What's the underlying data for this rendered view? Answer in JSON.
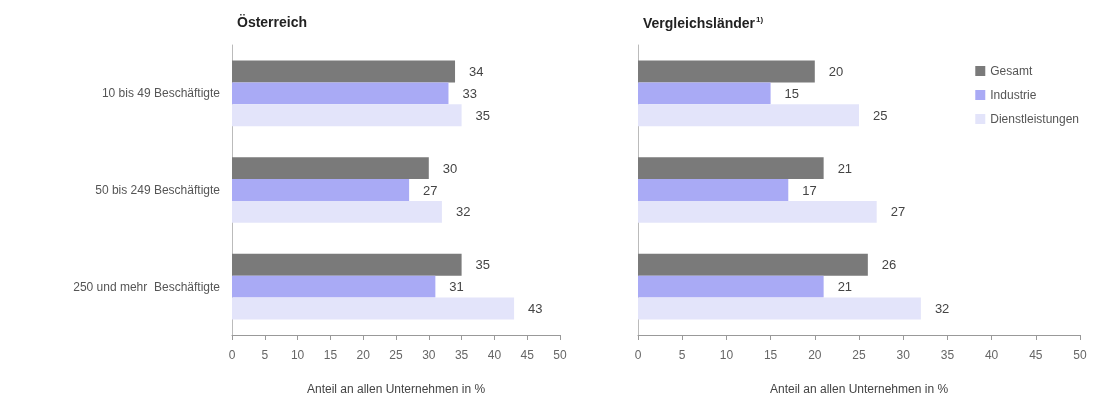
{
  "chart_data": [
    {
      "type": "bar",
      "orientation": "horizontal",
      "title": "Österreich",
      "xlabel": "Anteil an allen Unternehmen in %",
      "categories": [
        "10 bis 49 Beschäftigte",
        "50 bis 249 Beschäftigte",
        "250 und mehr  Beschäftigte"
      ],
      "series": [
        {
          "color": "#7a7a7a",
          "values": [
            34,
            30,
            35
          ]
        },
        {
          "color": "#a9aaf5",
          "values": [
            33,
            27,
            31
          ]
        },
        {
          "color": "#e3e4fa",
          "values": [
            35,
            32,
            43
          ]
        }
      ],
      "xlim": [
        0,
        50
      ],
      "xticks": [
        0,
        5,
        10,
        15,
        20,
        25,
        30,
        35,
        40,
        45,
        50
      ],
      "data_labels": true,
      "grid": false,
      "legend": false
    },
    {
      "type": "bar",
      "orientation": "horizontal",
      "title": "Vergleichsländer$^{1)}$",
      "xlabel": "Anteil an allen Unternehmen in %",
      "categories": [
        null,
        null,
        null
      ],
      "series": [
        {
          "name": "Gesamt",
          "color": "#7a7a7a",
          "values": [
            20,
            21,
            26
          ]
        },
        {
          "name": "Industrie",
          "color": "#a9aaf5",
          "values": [
            15,
            17,
            21
          ]
        },
        {
          "name": "Dienstleistungen",
          "color": "#e3e4fa",
          "values": [
            25,
            27,
            32
          ]
        }
      ],
      "xlim": [
        0,
        50
      ],
      "xticks": [
        0,
        5,
        10,
        15,
        20,
        25,
        30,
        35,
        40,
        45,
        50
      ],
      "data_labels": true,
      "grid": false,
      "legend": "top right",
      "tick_labels": "x"
    }
  ]
}
